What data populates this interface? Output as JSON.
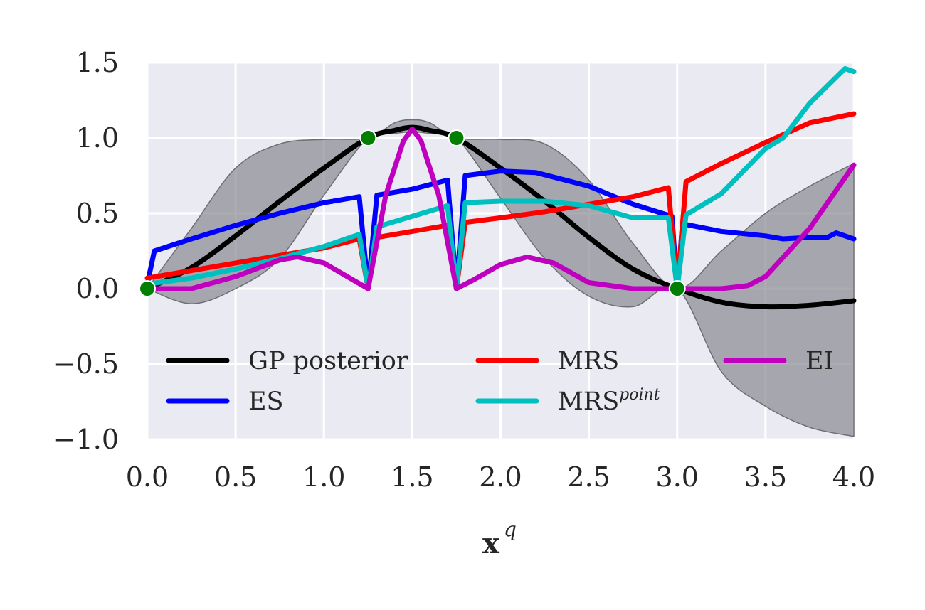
{
  "chart_data": {
    "type": "line",
    "title": "",
    "xlabel": "x",
    "xlabel_superscript": "q",
    "ylabel": "",
    "xlim": [
      0,
      4
    ],
    "ylim": [
      -1,
      1.5
    ],
    "xticks": [
      "0.0",
      "0.5",
      "1.0",
      "1.5",
      "2.0",
      "2.5",
      "3.0",
      "3.5",
      "4.0"
    ],
    "yticks": [
      "1.5",
      "1.0",
      "0.5",
      "0.0",
      "−0.5",
      "−1.0"
    ],
    "grid": true,
    "legend_position": "lower center",
    "colors": {
      "plot_background": "#eaeaf2",
      "grid": "#ffffff",
      "band": "#8c8c94",
      "observations": "#007f00"
    },
    "band": {
      "name": "GP uncertainty",
      "x": [
        0,
        0.25,
        0.5,
        0.75,
        1.0,
        1.25,
        1.4,
        1.5,
        1.6,
        1.75,
        2.0,
        2.25,
        2.5,
        2.75,
        3.0,
        3.25,
        3.5,
        3.75,
        4.0
      ],
      "upper": [
        0,
        0.4,
        0.8,
        0.96,
        0.99,
        1.0,
        1.1,
        1.12,
        1.1,
        1.0,
        0.99,
        0.96,
        0.72,
        0.3,
        0.0,
        0.25,
        0.5,
        0.68,
        0.83
      ],
      "lower": [
        0,
        -0.1,
        0.0,
        0.2,
        0.62,
        1.0,
        1.03,
        1.04,
        1.03,
        1.0,
        0.6,
        0.2,
        -0.05,
        -0.12,
        0.0,
        -0.55,
        -0.78,
        -0.92,
        -0.98
      ]
    },
    "series": [
      {
        "name": "GP posterior",
        "color": "#000000",
        "x": [
          0,
          0.25,
          0.5,
          0.75,
          1.0,
          1.25,
          1.4,
          1.5,
          1.6,
          1.75,
          2.0,
          2.25,
          2.5,
          2.75,
          3.0,
          3.25,
          3.5,
          3.75,
          4.0
        ],
        "y": [
          0,
          0.14,
          0.35,
          0.58,
          0.8,
          1.0,
          1.05,
          1.07,
          1.05,
          1.0,
          0.8,
          0.58,
          0.34,
          0.13,
          0.0,
          -0.09,
          -0.12,
          -0.11,
          -0.08
        ]
      },
      {
        "name": "ES",
        "color": "#0000ff",
        "x": [
          0,
          0.04,
          0.25,
          0.5,
          0.75,
          1.0,
          1.2,
          1.25,
          1.3,
          1.5,
          1.6,
          1.7,
          1.75,
          1.8,
          2.0,
          2.2,
          2.5,
          2.75,
          2.97,
          3.0,
          3.03,
          3.25,
          3.5,
          3.6,
          3.75,
          3.85,
          3.9,
          4.0
        ],
        "y": [
          0.03,
          0.25,
          0.33,
          0.42,
          0.5,
          0.57,
          0.61,
          0.0,
          0.62,
          0.66,
          0.69,
          0.72,
          0.0,
          0.75,
          0.78,
          0.77,
          0.68,
          0.56,
          0.48,
          0.0,
          0.43,
          0.38,
          0.35,
          0.33,
          0.34,
          0.34,
          0.37,
          0.33
        ]
      },
      {
        "name": "MRS",
        "color": "#ff0000",
        "x": [
          0,
          0.25,
          0.5,
          0.75,
          1.0,
          1.2,
          1.25,
          1.3,
          1.5,
          1.7,
          1.75,
          1.8,
          2.0,
          2.25,
          2.5,
          2.75,
          2.95,
          3.0,
          3.05,
          3.25,
          3.5,
          3.75,
          4.0
        ],
        "y": [
          0.07,
          0.12,
          0.17,
          0.22,
          0.27,
          0.33,
          0.0,
          0.34,
          0.38,
          0.42,
          0.0,
          0.44,
          0.47,
          0.51,
          0.56,
          0.61,
          0.67,
          0.0,
          0.71,
          0.83,
          0.97,
          1.1,
          1.16
        ]
      },
      {
        "name": "MRS",
        "name_superscript": "point",
        "color": "#00bfbf",
        "x": [
          0,
          0.25,
          0.5,
          0.75,
          1.0,
          1.2,
          1.25,
          1.3,
          1.5,
          1.7,
          1.75,
          1.8,
          2.0,
          2.25,
          2.5,
          2.75,
          2.95,
          3.0,
          3.05,
          3.25,
          3.5,
          3.6,
          3.75,
          3.95,
          4.0
        ],
        "y": [
          0.03,
          0.07,
          0.13,
          0.2,
          0.28,
          0.36,
          0.0,
          0.41,
          0.48,
          0.55,
          0.0,
          0.57,
          0.58,
          0.58,
          0.55,
          0.47,
          0.47,
          0.0,
          0.49,
          0.63,
          0.93,
          1.0,
          1.23,
          1.46,
          1.44
        ]
      },
      {
        "name": "EI",
        "color": "#bf00bf",
        "x": [
          0,
          0.25,
          0.5,
          0.75,
          0.85,
          1.0,
          1.25,
          1.35,
          1.45,
          1.5,
          1.55,
          1.65,
          1.75,
          1.85,
          2.0,
          2.15,
          2.3,
          2.5,
          2.75,
          3.0,
          3.25,
          3.4,
          3.5,
          3.75,
          4.0
        ],
        "y": [
          0,
          0.0,
          0.08,
          0.19,
          0.21,
          0.17,
          0.0,
          0.62,
          0.98,
          1.06,
          0.98,
          0.62,
          0.0,
          0.06,
          0.16,
          0.21,
          0.17,
          0.04,
          0.0,
          0.0,
          0.0,
          0.02,
          0.08,
          0.4,
          0.82
        ]
      }
    ],
    "observations": {
      "x": [
        0,
        1.25,
        1.75,
        3.0
      ],
      "y": [
        0,
        1.0,
        1.0,
        0.0
      ]
    },
    "legend": [
      {
        "label": "GP posterior",
        "sup": "",
        "color": "#000000"
      },
      {
        "label": "ES",
        "sup": "",
        "color": "#0000ff"
      },
      {
        "label": "MRS",
        "sup": "",
        "color": "#ff0000"
      },
      {
        "label": "MRS",
        "sup": "point",
        "color": "#00bfbf"
      },
      {
        "label": "EI",
        "sup": "",
        "color": "#bf00bf"
      }
    ]
  }
}
